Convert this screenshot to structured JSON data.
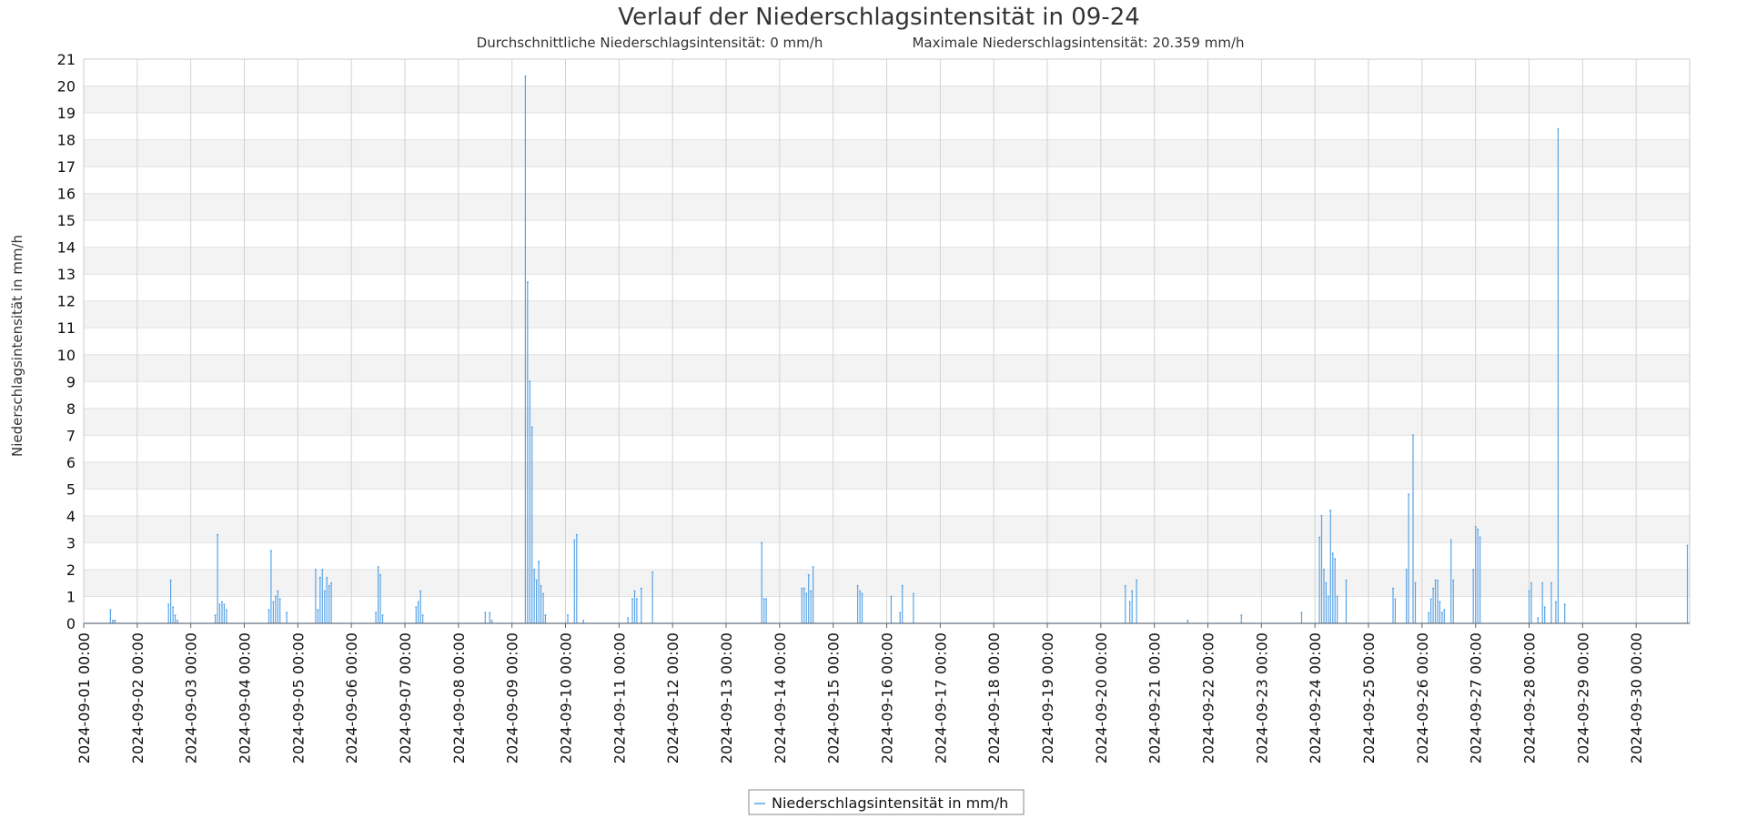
{
  "chart_data": {
    "type": "line",
    "title": "Verlauf der Niederschlagsintensität in 09-24",
    "subtitle_avg": "Durchschnittliche Niederschlagsintensität: 0 mm/h",
    "subtitle_max": "Maximale Niederschlagsintensität: 20.359 mm/h",
    "ylabel": "Niederschlagsintensität in mm/h",
    "xlabel": "",
    "ylim": [
      0,
      21
    ],
    "xlim": [
      "2024-09-01 00:00",
      "2024-10-01 00:00"
    ],
    "yticks": [
      "0",
      "1",
      "2",
      "3",
      "4",
      "5",
      "6",
      "7",
      "8",
      "9",
      "10",
      "11",
      "12",
      "13",
      "14",
      "15",
      "16",
      "17",
      "18",
      "19",
      "20",
      "21"
    ],
    "xticks": [
      "2024-09-01 00:00",
      "2024-09-02 00:00",
      "2024-09-03 00:00",
      "2024-09-04 00:00",
      "2024-09-05 00:00",
      "2024-09-06 00:00",
      "2024-09-07 00:00",
      "2024-09-08 00:00",
      "2024-09-09 00:00",
      "2024-09-10 00:00",
      "2024-09-11 00:00",
      "2024-09-12 00:00",
      "2024-09-13 00:00",
      "2024-09-14 00:00",
      "2024-09-15 00:00",
      "2024-09-16 00:00",
      "2024-09-17 00:00",
      "2024-09-18 00:00",
      "2024-09-19 00:00",
      "2024-09-20 00:00",
      "2024-09-21 00:00",
      "2024-09-22 00:00",
      "2024-09-23 00:00",
      "2024-09-24 00:00",
      "2024-09-25 00:00",
      "2024-09-26 00:00",
      "2024-09-27 00:00",
      "2024-09-28 00:00",
      "2024-09-29 00:00",
      "2024-09-30 00:00"
    ],
    "grid": true,
    "legend_position": "bottom-center",
    "series": [
      {
        "name": "Niederschlagsintensität in mm/h",
        "color": "#5aa4e6",
        "points": [
          [
            "2024-09-01 12:00",
            0.5
          ],
          [
            "2024-09-01 13:00",
            0.1
          ],
          [
            "2024-09-01 14:00",
            0.1
          ],
          [
            "2024-09-02 14:00",
            0.7
          ],
          [
            "2024-09-02 15:00",
            1.6
          ],
          [
            "2024-09-02 16:00",
            0.6
          ],
          [
            "2024-09-02 17:00",
            0.3
          ],
          [
            "2024-09-02 18:00",
            0.1
          ],
          [
            "2024-09-03 11:00",
            0.3
          ],
          [
            "2024-09-03 12:00",
            3.3
          ],
          [
            "2024-09-03 13:00",
            0.7
          ],
          [
            "2024-09-03 14:00",
            0.8
          ],
          [
            "2024-09-03 15:00",
            0.7
          ],
          [
            "2024-09-03 16:00",
            0.5
          ],
          [
            "2024-09-04 11:00",
            0.5
          ],
          [
            "2024-09-04 12:00",
            2.7
          ],
          [
            "2024-09-04 13:00",
            0.8
          ],
          [
            "2024-09-04 14:00",
            1.0
          ],
          [
            "2024-09-04 15:00",
            1.2
          ],
          [
            "2024-09-04 16:00",
            0.9
          ],
          [
            "2024-09-04 19:00",
            0.4
          ],
          [
            "2024-09-05 08:00",
            2.0
          ],
          [
            "2024-09-05 09:00",
            0.5
          ],
          [
            "2024-09-05 10:00",
            1.7
          ],
          [
            "2024-09-05 11:00",
            2.0
          ],
          [
            "2024-09-05 12:00",
            1.2
          ],
          [
            "2024-09-05 13:00",
            1.7
          ],
          [
            "2024-09-05 14:00",
            1.4
          ],
          [
            "2024-09-05 15:00",
            1.5
          ],
          [
            "2024-09-06 11:00",
            0.4
          ],
          [
            "2024-09-06 12:00",
            2.1
          ],
          [
            "2024-09-06 13:00",
            1.8
          ],
          [
            "2024-09-06 14:00",
            0.3
          ],
          [
            "2024-09-07 05:00",
            0.6
          ],
          [
            "2024-09-07 06:00",
            0.8
          ],
          [
            "2024-09-07 07:00",
            1.2
          ],
          [
            "2024-09-07 08:00",
            0.3
          ],
          [
            "2024-09-08 12:00",
            0.4
          ],
          [
            "2024-09-08 14:00",
            0.4
          ],
          [
            "2024-09-08 15:00",
            0.1
          ],
          [
            "2024-09-09 06:00",
            20.359
          ],
          [
            "2024-09-09 07:00",
            12.7
          ],
          [
            "2024-09-09 08:00",
            9.0
          ],
          [
            "2024-09-09 09:00",
            7.3
          ],
          [
            "2024-09-09 10:00",
            2.0
          ],
          [
            "2024-09-09 11:00",
            1.6
          ],
          [
            "2024-09-09 12:00",
            2.3
          ],
          [
            "2024-09-09 13:00",
            1.4
          ],
          [
            "2024-09-09 14:00",
            1.1
          ],
          [
            "2024-09-09 15:00",
            0.3
          ],
          [
            "2024-09-10 01:00",
            0.3
          ],
          [
            "2024-09-10 04:00",
            3.1
          ],
          [
            "2024-09-10 05:00",
            3.3
          ],
          [
            "2024-09-10 08:00",
            0.1
          ],
          [
            "2024-09-11 04:00",
            0.2
          ],
          [
            "2024-09-11 06:00",
            0.9
          ],
          [
            "2024-09-11 07:00",
            1.2
          ],
          [
            "2024-09-11 08:00",
            0.9
          ],
          [
            "2024-09-11 10:00",
            1.3
          ],
          [
            "2024-09-11 15:00",
            1.9
          ],
          [
            "2024-09-13 16:00",
            3.0
          ],
          [
            "2024-09-13 17:00",
            0.9
          ],
          [
            "2024-09-13 18:00",
            0.9
          ],
          [
            "2024-09-14 10:00",
            1.3
          ],
          [
            "2024-09-14 11:00",
            1.3
          ],
          [
            "2024-09-14 12:00",
            1.1
          ],
          [
            "2024-09-14 13:00",
            1.8
          ],
          [
            "2024-09-14 14:00",
            1.2
          ],
          [
            "2024-09-14 15:00",
            2.1
          ],
          [
            "2024-09-15 11:00",
            1.4
          ],
          [
            "2024-09-15 12:00",
            1.2
          ],
          [
            "2024-09-15 13:00",
            1.1
          ],
          [
            "2024-09-16 02:00",
            1.0
          ],
          [
            "2024-09-16 06:00",
            0.4
          ],
          [
            "2024-09-16 07:00",
            1.4
          ],
          [
            "2024-09-16 12:00",
            1.1
          ],
          [
            "2024-09-20 11:00",
            1.4
          ],
          [
            "2024-09-20 13:00",
            0.8
          ],
          [
            "2024-09-20 14:00",
            1.2
          ],
          [
            "2024-09-20 16:00",
            1.6
          ],
          [
            "2024-09-21 15:00",
            0.1
          ],
          [
            "2024-09-22 15:00",
            0.3
          ],
          [
            "2024-09-23 18:00",
            0.4
          ],
          [
            "2024-09-24 02:00",
            3.2
          ],
          [
            "2024-09-24 03:00",
            4.0
          ],
          [
            "2024-09-24 04:00",
            2.0
          ],
          [
            "2024-09-24 05:00",
            1.5
          ],
          [
            "2024-09-24 06:00",
            1.0
          ],
          [
            "2024-09-24 07:00",
            4.2
          ],
          [
            "2024-09-24 08:00",
            2.6
          ],
          [
            "2024-09-24 09:00",
            2.4
          ],
          [
            "2024-09-24 10:00",
            1.0
          ],
          [
            "2024-09-24 14:00",
            1.6
          ],
          [
            "2024-09-25 11:00",
            1.3
          ],
          [
            "2024-09-25 12:00",
            0.9
          ],
          [
            "2024-09-25 17:00",
            2.0
          ],
          [
            "2024-09-25 18:00",
            4.8
          ],
          [
            "2024-09-25 20:00",
            7.0
          ],
          [
            "2024-09-25 21:00",
            1.5
          ],
          [
            "2024-09-26 03:00",
            0.4
          ],
          [
            "2024-09-26 04:00",
            0.9
          ],
          [
            "2024-09-26 05:00",
            1.3
          ],
          [
            "2024-09-26 06:00",
            1.6
          ],
          [
            "2024-09-26 07:00",
            1.6
          ],
          [
            "2024-09-26 08:00",
            0.8
          ],
          [
            "2024-09-26 09:00",
            0.4
          ],
          [
            "2024-09-26 10:00",
            0.5
          ],
          [
            "2024-09-26 13:00",
            3.1
          ],
          [
            "2024-09-26 14:00",
            1.6
          ],
          [
            "2024-09-26 23:00",
            2.0
          ],
          [
            "2024-09-27 00:00",
            3.6
          ],
          [
            "2024-09-27 01:00",
            3.5
          ],
          [
            "2024-09-27 02:00",
            3.2
          ],
          [
            "2024-09-28 00:00",
            1.2
          ],
          [
            "2024-09-28 01:00",
            1.5
          ],
          [
            "2024-09-28 04:00",
            0.2
          ],
          [
            "2024-09-28 06:00",
            1.5
          ],
          [
            "2024-09-28 07:00",
            0.6
          ],
          [
            "2024-09-28 10:00",
            1.5
          ],
          [
            "2024-09-28 12:00",
            0.8
          ],
          [
            "2024-09-28 13:00",
            18.4
          ],
          [
            "2024-09-28 16:00",
            0.7
          ],
          [
            "2024-09-30 23:00",
            2.9
          ]
        ]
      }
    ]
  }
}
